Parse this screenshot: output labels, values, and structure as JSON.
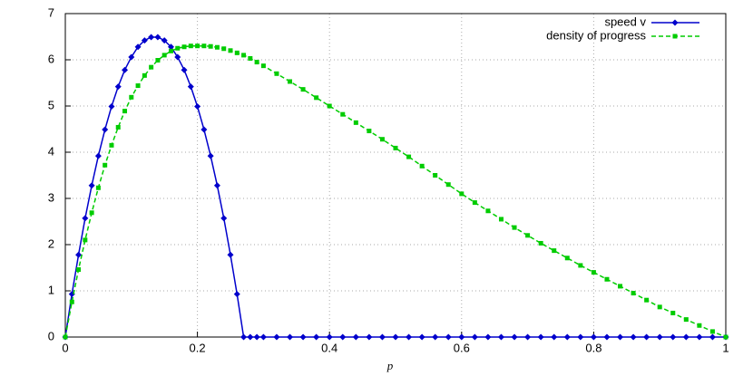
{
  "chart_data": {
    "type": "line",
    "xlabel": "p",
    "x": [
      0,
      0.01,
      0.02,
      0.03,
      0.04,
      0.05,
      0.06,
      0.07,
      0.08,
      0.09,
      0.1,
      0.11,
      0.12,
      0.13,
      0.14,
      0.15,
      0.16,
      0.17,
      0.18,
      0.19,
      0.2,
      0.21,
      0.22,
      0.23,
      0.24,
      0.25,
      0.26,
      0.27,
      0.28,
      0.29,
      0.3,
      0.32,
      0.34,
      0.36,
      0.38,
      0.4,
      0.42,
      0.44,
      0.46,
      0.48,
      0.5,
      0.52,
      0.54,
      0.56,
      0.58,
      0.6,
      0.62,
      0.64,
      0.66,
      0.68,
      0.7,
      0.72,
      0.74,
      0.76,
      0.78,
      0.8,
      0.82,
      0.84,
      0.86,
      0.88,
      0.9,
      0.92,
      0.94,
      0.96,
      0.98,
      1
    ],
    "series": [
      {
        "name": "speed v",
        "color": "#0000cc",
        "marker": "diamond",
        "values": [
          0,
          0.93,
          1.78,
          2.57,
          3.28,
          3.92,
          4.49,
          4.99,
          5.42,
          5.78,
          6.06,
          6.28,
          6.42,
          6.49,
          6.49,
          6.42,
          6.28,
          6.06,
          5.78,
          5.42,
          4.99,
          4.49,
          3.92,
          3.28,
          2.57,
          1.78,
          0.93,
          0,
          0,
          0,
          0,
          0,
          0,
          0,
          0,
          0,
          0,
          0,
          0,
          0,
          0,
          0,
          0,
          0,
          0,
          0,
          0,
          0,
          0,
          0,
          0,
          0,
          0,
          0,
          0,
          0,
          0,
          0,
          0,
          0,
          0,
          0,
          0,
          0,
          0,
          0
        ]
      },
      {
        "name": "density of progress",
        "color": "#00cc00",
        "marker": "square",
        "dashed": true,
        "values": [
          0,
          0.76,
          1.46,
          2.1,
          2.69,
          3.23,
          3.72,
          4.15,
          4.54,
          4.89,
          5.19,
          5.44,
          5.66,
          5.84,
          5.99,
          6.1,
          6.19,
          6.25,
          6.28,
          6.3,
          6.3,
          6.3,
          6.29,
          6.27,
          6.24,
          6.2,
          6.15,
          6.1,
          6.03,
          5.95,
          5.87,
          5.7,
          5.53,
          5.36,
          5.18,
          5.0,
          4.82,
          4.64,
          4.46,
          4.28,
          4.09,
          3.9,
          3.7,
          3.5,
          3.3,
          3.1,
          2.91,
          2.73,
          2.55,
          2.37,
          2.2,
          2.03,
          1.87,
          1.71,
          1.55,
          1.4,
          1.25,
          1.1,
          0.95,
          0.8,
          0.65,
          0.52,
          0.38,
          0.25,
          0.12,
          0
        ]
      }
    ],
    "xlim": [
      0,
      1
    ],
    "xticks": [
      0,
      0.2,
      0.4,
      0.6,
      0.8,
      1
    ],
    "ylim": [
      0,
      7
    ],
    "yticks": [
      0,
      1,
      2,
      3,
      4,
      5,
      6,
      7
    ],
    "grid": true,
    "legend": "top-right"
  }
}
